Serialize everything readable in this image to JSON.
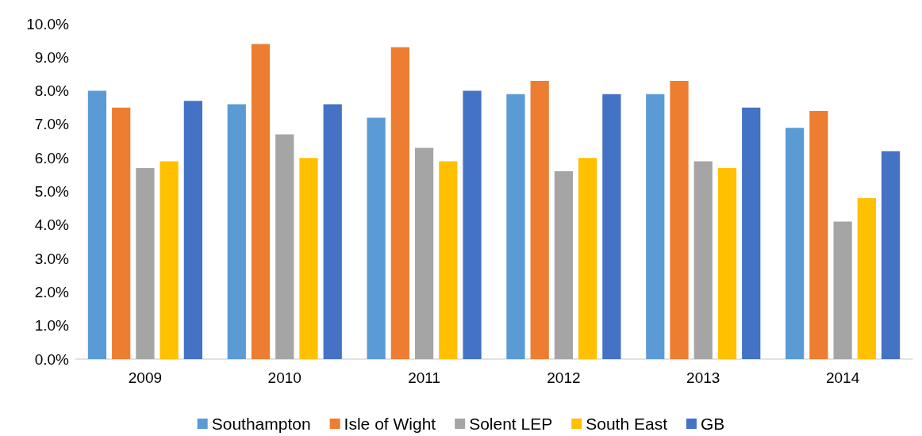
{
  "chart_data": {
    "type": "bar",
    "categories": [
      "2009",
      "2010",
      "2011",
      "2012",
      "2013",
      "2014"
    ],
    "series": [
      {
        "name": "Southampton",
        "color": "#5b9bd5",
        "values": [
          8.0,
          7.6,
          7.2,
          7.9,
          7.9,
          6.9
        ]
      },
      {
        "name": "Isle of Wight",
        "color": "#ed7d31",
        "values": [
          7.5,
          9.4,
          9.3,
          8.3,
          8.3,
          7.4
        ]
      },
      {
        "name": "Solent LEP",
        "color": "#a5a5a5",
        "values": [
          5.7,
          6.7,
          6.3,
          5.6,
          5.9,
          4.1
        ]
      },
      {
        "name": "South East",
        "color": "#ffc000",
        "values": [
          5.9,
          6.0,
          5.9,
          6.0,
          5.7,
          4.8
        ]
      },
      {
        "name": "GB",
        "color": "#4472c4",
        "values": [
          7.7,
          7.6,
          8.0,
          7.9,
          7.5,
          6.2
        ]
      }
    ],
    "ylim": [
      0,
      10
    ],
    "yticks": [
      {
        "value": 0,
        "label": "0.0%"
      },
      {
        "value": 1,
        "label": "1.0%"
      },
      {
        "value": 2,
        "label": "2.0%"
      },
      {
        "value": 3,
        "label": "3.0%"
      },
      {
        "value": 4,
        "label": "4.0%"
      },
      {
        "value": 5,
        "label": "5.0%"
      },
      {
        "value": 6,
        "label": "6.0%"
      },
      {
        "value": 7,
        "label": "7.0%"
      },
      {
        "value": 8,
        "label": "8.0%"
      },
      {
        "value": 9,
        "label": "9.0%"
      },
      {
        "value": 10,
        "label": "10.0%"
      }
    ],
    "grid": false,
    "legend": "bottom"
  }
}
